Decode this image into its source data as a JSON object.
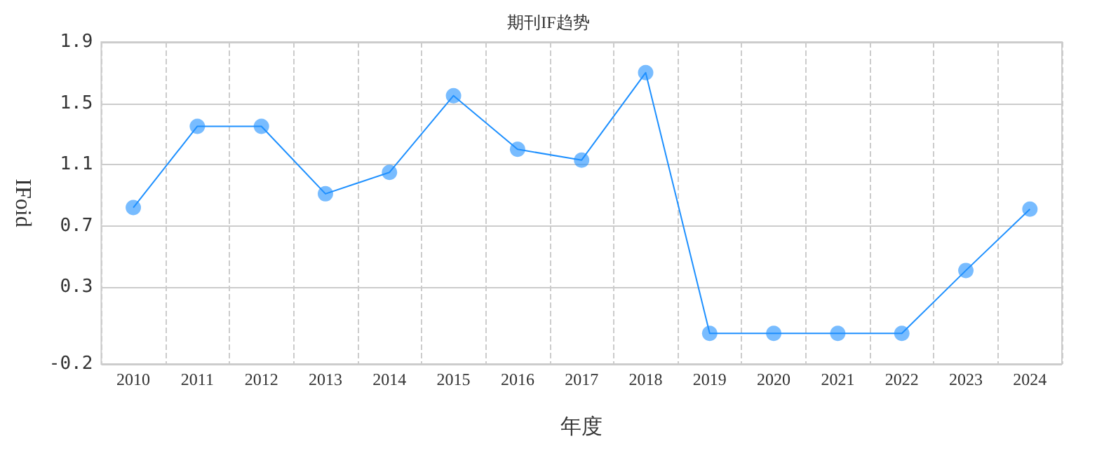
{
  "chart_data": {
    "type": "line",
    "title": "期刊IF趋势",
    "xlabel": "年度",
    "ylabel": "IFoid",
    "categories": [
      "2010",
      "2011",
      "2012",
      "2013",
      "2014",
      "2015",
      "2016",
      "2017",
      "2018",
      "2019",
      "2020",
      "2021",
      "2022",
      "2023",
      "2024"
    ],
    "series": [
      {
        "color": "#1e90ff",
        "values": [
          0.82,
          1.35,
          1.35,
          0.91,
          1.05,
          1.55,
          1.2,
          1.13,
          1.7,
          0,
          0,
          0,
          0,
          0.41,
          0.81
        ]
      }
    ],
    "ylim": [
      -0.2,
      1.9
    ],
    "yticks": [
      -0.2,
      0.3,
      0.7,
      1.1,
      1.5,
      1.9
    ],
    "grid": true,
    "marker": "circle",
    "line_style": "solid"
  }
}
